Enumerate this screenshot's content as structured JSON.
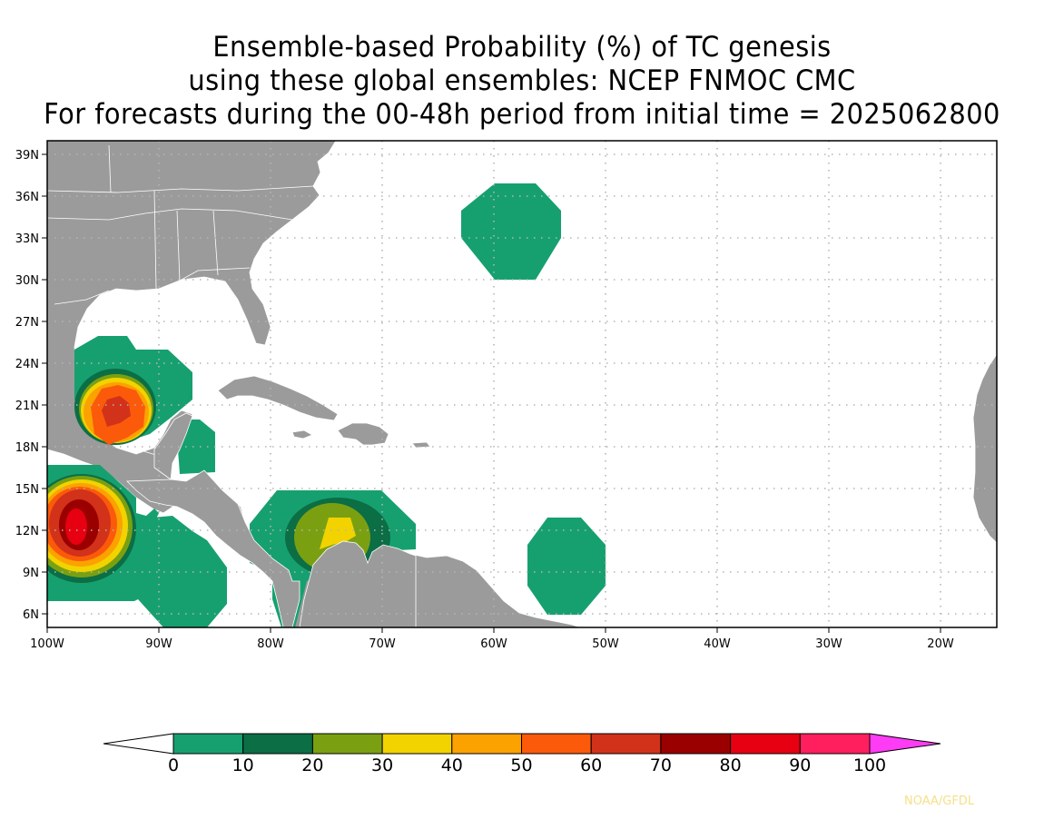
{
  "title": {
    "line1": "Ensemble-based Probability (%) of TC genesis",
    "line2": "using these global ensembles:   NCEP FNMOC CMC",
    "line3": "For forecasts during the 00-48h period from initial time = 2025062800"
  },
  "map": {
    "lat_labels": [
      "39N",
      "36N",
      "33N",
      "30N",
      "27N",
      "24N",
      "21N",
      "18N",
      "15N",
      "12N",
      "9N",
      "6N"
    ],
    "lon_labels": [
      "100W",
      "90W",
      "80W",
      "70W",
      "60W",
      "50W",
      "40W",
      "30W",
      "20W"
    ],
    "colors": {
      "land": "#9b9b9b",
      "ocean": "#ffffff",
      "border": "#ffffff"
    }
  },
  "colorbar": {
    "labels": [
      "0",
      "10",
      "20",
      "30",
      "40",
      "50",
      "60",
      "70",
      "80",
      "90",
      "100"
    ],
    "colors": [
      "#16a070",
      "#0b6e45",
      "#7aa012",
      "#f2d300",
      "#fba200",
      "#fb5a0a",
      "#d2321a",
      "#9b0000",
      "#e60012",
      "#ff1f5f"
    ],
    "under_color": "#ffffff",
    "over_color": "#ff3cf5"
  },
  "credit": "NOAA/GFDL"
}
